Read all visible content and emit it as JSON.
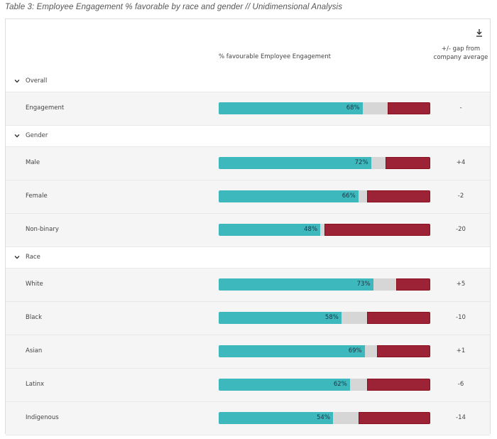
{
  "caption": "Table 3:  Employee Engagement % favorable by race and gender // Unidimensional Analysis",
  "header": {
    "bar_column": "% favourable Employee Engagement",
    "gap_column": "+/- gap from company average",
    "download_icon": "download-icon"
  },
  "colors": {
    "favorable": "#3db8bd",
    "neutral": "#d6d6d6",
    "unfavorable": "#9b2335"
  },
  "chart_data": {
    "type": "bar",
    "orientation": "horizontal-stacked",
    "xlim": [
      0,
      100
    ],
    "groups": [
      {
        "label": "Overall",
        "rows": [
          {
            "label": "Engagement",
            "favorable": 68,
            "favorable_label": "68%",
            "neutral": 12,
            "unfavorable": 20,
            "gap": "-"
          }
        ]
      },
      {
        "label": "Gender",
        "rows": [
          {
            "label": "Male",
            "favorable": 72,
            "favorable_label": "72%",
            "neutral": 7,
            "unfavorable": 21,
            "gap": "+4"
          },
          {
            "label": "Female",
            "favorable": 66,
            "favorable_label": "66%",
            "neutral": 4,
            "unfavorable": 30,
            "gap": "-2"
          },
          {
            "label": "Non-binary",
            "favorable": 48,
            "favorable_label": "48%",
            "neutral": 2,
            "unfavorable": 50,
            "gap": "-20"
          }
        ]
      },
      {
        "label": "Race",
        "rows": [
          {
            "label": "White",
            "favorable": 73,
            "favorable_label": "73%",
            "neutral": 11,
            "unfavorable": 16,
            "gap": "+5"
          },
          {
            "label": "Black",
            "favorable": 58,
            "favorable_label": "58%",
            "neutral": 12,
            "unfavorable": 30,
            "gap": "-10"
          },
          {
            "label": "Asian",
            "favorable": 69,
            "favorable_label": "69%",
            "neutral": 6,
            "unfavorable": 25,
            "gap": "+1"
          },
          {
            "label": "Latinx",
            "favorable": 62,
            "favorable_label": "62%",
            "neutral": 8,
            "unfavorable": 30,
            "gap": "-6"
          },
          {
            "label": "Indigenous",
            "favorable": 54,
            "favorable_label": "54%",
            "neutral": 12,
            "unfavorable": 34,
            "gap": "-14"
          }
        ]
      }
    ]
  }
}
